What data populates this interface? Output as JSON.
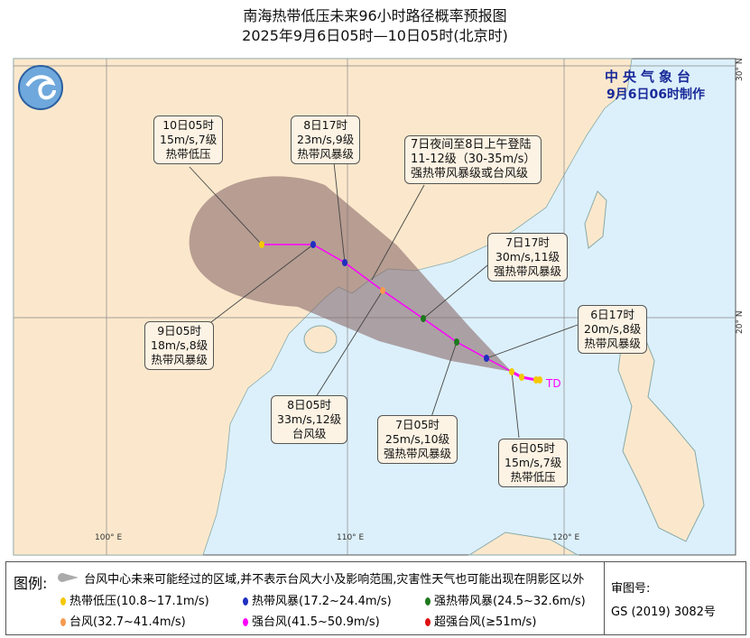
{
  "title": {
    "line1": "南海热带低压未来96小时路径概率预报图",
    "line2": "2025年9月6日05时—10日05时(北京时)"
  },
  "agency": {
    "name": "中央气象台",
    "issued": "9月6日06时制作"
  },
  "axes": {
    "lon": [
      "100° E",
      "110° E",
      "120° E"
    ],
    "lat": [
      "30° N",
      "20° N"
    ]
  },
  "colors": {
    "land": "#fbe8cc",
    "sea": "#dcf0fb",
    "cone": "#8a6a6a",
    "track": "#ff00ff",
    "td": "#f5c800",
    "ts": "#1f2fbf",
    "sts": "#1d7a1d",
    "ty": "#f59a50",
    "sty": "#ff00ff",
    "superty": "#e01010"
  },
  "current_label": "TD",
  "forecast_points": [
    {
      "time": "6日05时",
      "wind": "15m/s,7级",
      "category": "热带低压",
      "level": "td"
    },
    {
      "time": "6日17时",
      "wind": "20m/s,8级",
      "category": "热带风暴级",
      "level": "ts"
    },
    {
      "time": "7日05时",
      "wind": "25m/s,10级",
      "category": "强热带风暴级",
      "level": "sts"
    },
    {
      "time": "7日17时",
      "wind": "30m/s,11级",
      "category": "强热带风暴级",
      "level": "sts"
    },
    {
      "time": "8日05时",
      "wind": "33m/s,12级",
      "category": "台风级",
      "level": "ty"
    },
    {
      "time": "8日17时",
      "wind": "23m/s,9级",
      "category": "热带风暴级",
      "level": "ts"
    },
    {
      "time": "9日05时",
      "wind": "18m/s,8级",
      "category": "热带风暴级",
      "level": "ts"
    },
    {
      "time": "10日05时",
      "wind": "15m/s,7级",
      "category": "热带低压",
      "level": "td"
    }
  ],
  "landfall": {
    "line1": "7日夜间至8日上午登陆",
    "line2": "11-12级（30-35m/s）",
    "line3": "强热带风暴级或台风级"
  },
  "legend": {
    "label": "图例:",
    "cone_text": "台风中心未来可能经过的区域,并不表示台风大小及影响范围,灾害性天气也可能出现在阴影区以外",
    "items": [
      {
        "text": "热带低压(10.8~17.1m/s)",
        "color": "#f5c800"
      },
      {
        "text": "热带风暴(17.2~24.4m/s)",
        "color": "#1f2fbf"
      },
      {
        "text": "强热带风暴(24.5~32.6m/s)",
        "color": "#1d7a1d"
      },
      {
        "text": "台风(32.7~41.4m/s)",
        "color": "#f59a50"
      },
      {
        "text": "强台风(41.5~50.9m/s)",
        "color": "#ff00ff"
      },
      {
        "text": "超强台风(≥51m/s)",
        "color": "#e01010"
      }
    ]
  },
  "review": {
    "label": "审图号:",
    "number": "GS (2019) 3082号"
  }
}
